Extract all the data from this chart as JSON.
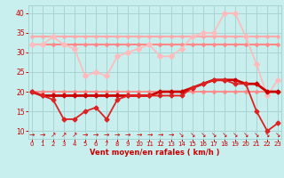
{
  "bg_color": "#c8eeee",
  "grid_color": "#a8d4d4",
  "xlabel": "Vent moyen/en rafales ( km/h )",
  "xlabel_color": "#cc0000",
  "tick_color": "#cc0000",
  "ylim": [
    8,
    42
  ],
  "xlim": [
    -0.3,
    23.3
  ],
  "yticks": [
    10,
    15,
    20,
    25,
    30,
    35,
    40
  ],
  "xticks": [
    0,
    1,
    2,
    3,
    4,
    5,
    6,
    7,
    8,
    9,
    10,
    11,
    12,
    13,
    14,
    15,
    16,
    17,
    18,
    19,
    20,
    21,
    22,
    23
  ],
  "hours": [
    0,
    1,
    2,
    3,
    4,
    5,
    6,
    7,
    8,
    9,
    10,
    11,
    12,
    13,
    14,
    15,
    16,
    17,
    18,
    19,
    20,
    21,
    22,
    23
  ],
  "rafales_high": [
    34,
    34,
    34,
    34,
    34,
    34,
    34,
    34,
    34,
    34,
    34,
    34,
    34,
    34,
    34,
    34,
    34,
    34,
    34,
    34,
    34,
    34,
    34,
    34
  ],
  "rafales_high_color": "#ffaaaa",
  "rafales_high_lw": 1.5,
  "rafales_vary": [
    32,
    32,
    34,
    32,
    31,
    24,
    25,
    24,
    29,
    30,
    31,
    32,
    29,
    29,
    31,
    34,
    35,
    35,
    40,
    40,
    34,
    27,
    19,
    23
  ],
  "rafales_vary_color": "#ffbbbb",
  "rafales_vary_lw": 1.2,
  "rafales_vary_ms": 3.0,
  "vent_max_flat": [
    32,
    32,
    32,
    32,
    32,
    32,
    32,
    32,
    32,
    32,
    32,
    32,
    32,
    32,
    32,
    32,
    32,
    32,
    32,
    32,
    32,
    32,
    32,
    32
  ],
  "vent_max_flat_color": "#ff8888",
  "vent_max_flat_lw": 1.5,
  "vent_moyen": [
    20,
    19,
    19,
    19,
    19,
    19,
    19,
    19,
    19,
    19,
    19,
    19,
    20,
    20,
    20,
    21,
    22,
    23,
    23,
    23,
    22,
    22,
    20,
    20
  ],
  "vent_moyen_color": "#cc0000",
  "vent_moyen_lw": 2.0,
  "vent_moyen_ms": 2.5,
  "vent_min": [
    20,
    19,
    18,
    13,
    13,
    15,
    16,
    13,
    18,
    19,
    19,
    19,
    19,
    19,
    19,
    21,
    22,
    23,
    23,
    22,
    22,
    15,
    10,
    12
  ],
  "vent_min_color": "#dd2222",
  "vent_min_lw": 1.3,
  "vent_min_ms": 2.5,
  "vent_rafales_low": [
    20,
    20,
    20,
    20,
    20,
    20,
    20,
    20,
    20,
    20,
    20,
    20,
    20,
    20,
    20,
    20,
    20,
    20,
    20,
    20,
    20,
    20,
    20,
    20
  ],
  "vent_rafales_low_color": "#ff8888",
  "vent_rafales_low_lw": 1.3,
  "arrows": [
    "→",
    "→",
    "↗",
    "↗",
    "↗",
    "→",
    "→",
    "→",
    "→",
    "→",
    "→",
    "→",
    "→",
    "→",
    "↘",
    "↘",
    "↘",
    "↘",
    "↘",
    "↘",
    "↘",
    "↘",
    "↘",
    "↘"
  ],
  "arrow_color": "#cc0000",
  "arrow_fontsize": 5.5
}
